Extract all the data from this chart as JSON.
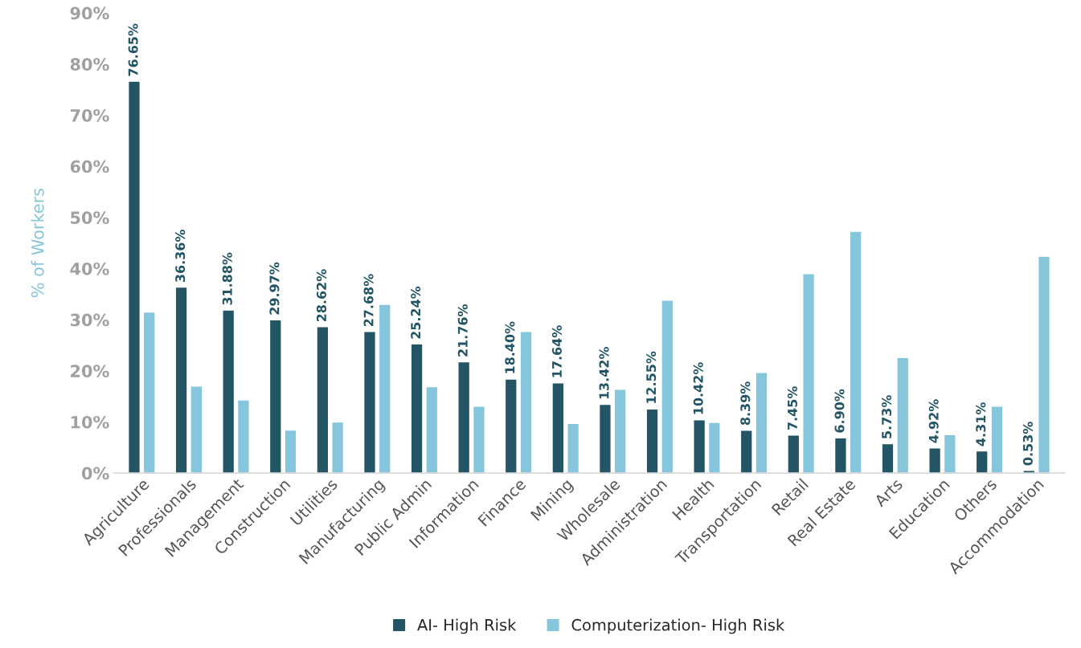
{
  "chart_data": {
    "type": "bar",
    "ylabel": "% of Workers",
    "categories": [
      "Agriculture",
      "Professionals",
      "Management",
      "Construction",
      "Utilities",
      "Manufacturing",
      "Public Admin",
      "Information",
      "Finance",
      "Mining",
      "Wholesale",
      "Administration",
      "Health",
      "Transportation",
      "Retail",
      "Real Estate",
      "Arts",
      "Education",
      "Others",
      "Accommodation"
    ],
    "series": [
      {
        "name": "AI- High Risk",
        "color": "#235565",
        "values": [
          76.65,
          36.36,
          31.88,
          29.97,
          28.62,
          27.68,
          25.24,
          21.76,
          18.4,
          17.64,
          13.42,
          12.55,
          10.42,
          8.39,
          7.45,
          6.9,
          5.73,
          4.92,
          4.31,
          0.53
        ],
        "value_labels": [
          "76.65%",
          "36.36%",
          "31.88%",
          "29.97%",
          "28.62%",
          "27.68%",
          "25.24%",
          "21.76%",
          "18.40%",
          "17.64%",
          "13.42%",
          "12.55%",
          "10.42%",
          "8.39%",
          "7.45%",
          "6.90%",
          "5.73%",
          "4.92%",
          "4.31%",
          "0.53%"
        ]
      },
      {
        "name": "Computerization- High Risk",
        "color": "#86c6dd",
        "values": [
          31.5,
          17.0,
          14.3,
          8.4,
          10.0,
          33.0,
          16.9,
          13.1,
          27.7,
          9.7,
          16.4,
          33.8,
          9.9,
          19.7,
          39.0,
          47.3,
          22.6,
          7.5,
          13.1,
          42.4
        ]
      }
    ],
    "ylim": [
      0,
      90
    ],
    "yticks": [
      {
        "value": 0,
        "label": "0%"
      },
      {
        "value": 10,
        "label": "10%"
      },
      {
        "value": 20,
        "label": "20%"
      },
      {
        "value": 30,
        "label": "30%"
      },
      {
        "value": 40,
        "label": "40%"
      },
      {
        "value": 50,
        "label": "50%"
      },
      {
        "value": 60,
        "label": "60%"
      },
      {
        "value": 70,
        "label": "70%"
      },
      {
        "value": 80,
        "label": "80%"
      },
      {
        "value": 90,
        "label": "90%"
      }
    ],
    "grid": false,
    "legend": "bottom"
  }
}
